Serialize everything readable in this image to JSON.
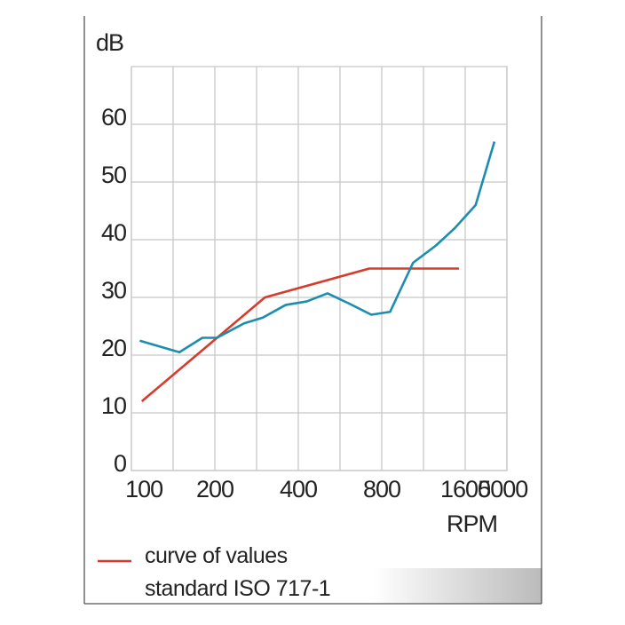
{
  "chart_data": {
    "type": "line",
    "ylabel": "dB",
    "xlabel": "RPM",
    "xlim": [
      0,
      9
    ],
    "xticks": [
      {
        "value": 0.3,
        "label": "100"
      },
      {
        "value": 2,
        "label": "200"
      },
      {
        "value": 4,
        "label": "400"
      },
      {
        "value": 6,
        "label": "800"
      },
      {
        "value": 8,
        "label": "1600"
      },
      {
        "value": 8.9,
        "label": "5000"
      }
    ],
    "xgrid": [
      0,
      1,
      2,
      3,
      4,
      5,
      6,
      7,
      8,
      9
    ],
    "ylim": [
      0,
      70
    ],
    "yticks": [
      0,
      10,
      20,
      30,
      40,
      50,
      60
    ],
    "grid": true,
    "series": [
      {
        "name": "curve of values standard ISO 717-1",
        "color": "#d63b2c",
        "x": [
          0.25,
          3.2,
          5.7,
          7.85
        ],
        "values": [
          12,
          30,
          35,
          35
        ]
      },
      {
        "color": "#1b8db0",
        "x": [
          0.2,
          1.15,
          1.7,
          2.05,
          2.7,
          3.15,
          3.7,
          4.2,
          4.7,
          5.2,
          5.75,
          6.2,
          6.75,
          7.3,
          7.75,
          8.25,
          8.7
        ],
        "values": [
          22.5,
          20.5,
          23,
          23,
          25.5,
          26.5,
          28.7,
          29.3,
          30.7,
          29,
          27,
          27.5,
          36,
          39,
          42,
          46,
          57
        ]
      }
    ]
  }
}
